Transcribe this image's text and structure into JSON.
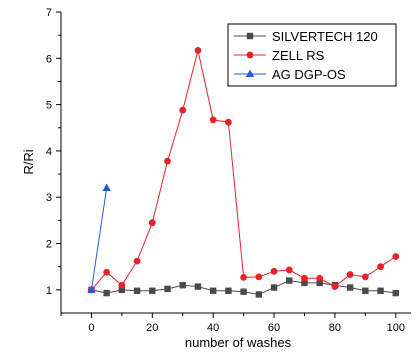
{
  "chart_data": {
    "type": "line",
    "xlabel": "number of washes",
    "ylabel": "R/Ri",
    "xlim": [
      -10,
      105
    ],
    "ylim": [
      0.5,
      7
    ],
    "xticks": [
      0,
      20,
      40,
      60,
      80,
      100
    ],
    "yticks": [
      1,
      2,
      3,
      4,
      5,
      6,
      7
    ],
    "grid": false,
    "legend_position": "top-right",
    "series": [
      {
        "name": "SILVERTECH 120",
        "color": "#4a4a4a",
        "marker": "square",
        "x": [
          0,
          5,
          10,
          15,
          20,
          25,
          30,
          35,
          40,
          45,
          50,
          55,
          60,
          65,
          70,
          75,
          80,
          85,
          90,
          95,
          100
        ],
        "y": [
          1.0,
          0.93,
          1.0,
          0.98,
          0.98,
          1.02,
          1.1,
          1.07,
          0.98,
          0.98,
          0.96,
          0.9,
          1.05,
          1.2,
          1.15,
          1.15,
          1.1,
          1.05,
          0.98,
          0.98,
          0.93
        ]
      },
      {
        "name": "ZELL RS",
        "color": "#e8222a",
        "marker": "circle",
        "x": [
          0,
          5,
          10,
          15,
          20,
          25,
          30,
          35,
          40,
          45,
          50,
          55,
          60,
          65,
          70,
          75,
          80,
          85,
          90,
          95,
          100
        ],
        "y": [
          1.0,
          1.38,
          1.1,
          1.62,
          2.45,
          3.78,
          4.88,
          6.17,
          4.67,
          4.62,
          1.27,
          1.28,
          1.4,
          1.43,
          1.25,
          1.25,
          1.07,
          1.33,
          1.28,
          1.5,
          1.72
        ]
      },
      {
        "name": "AG DGP-OS",
        "color": "#1f5fd6",
        "marker": "triangle",
        "x": [
          0,
          5
        ],
        "y": [
          1.0,
          3.2
        ]
      }
    ]
  }
}
